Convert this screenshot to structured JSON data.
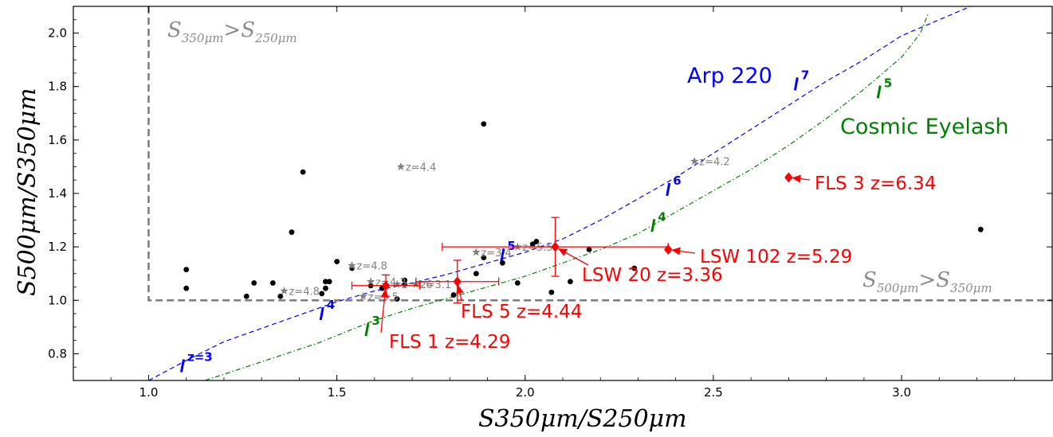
{
  "chart_data": {
    "type": "scatter",
    "xlabel": "S350μm/S250μm",
    "ylabel": "S500μm/S350μm",
    "xlim": [
      0.8,
      3.4
    ],
    "ylim": [
      0.7,
      2.1
    ],
    "xticks": [
      "1.0",
      "1.5",
      "2.0",
      "2.5",
      "3.0"
    ],
    "yticks": [
      "0.8",
      "1.0",
      "1.2",
      "1.4",
      "1.6",
      "1.8",
      "2.0"
    ],
    "grid": false,
    "regions": {
      "vertical_threshold_x": 1.0,
      "horizontal_threshold_y": 1.0,
      "upper_left_label": {
        "main": "S",
        "sub1": "350μm",
        "mid": ">S",
        "sub2": "250μm"
      },
      "lower_right_label": {
        "main": "S",
        "sub1": "500μm",
        "mid": ">S",
        "sub2": "350μm"
      },
      "color": "#808080"
    },
    "black_points": [
      {
        "x": 1.1,
        "y": 1.115
      },
      {
        "x": 1.1,
        "y": 1.045
      },
      {
        "x": 1.26,
        "y": 1.015
      },
      {
        "x": 1.28,
        "y": 1.065
      },
      {
        "x": 1.33,
        "y": 1.065
      },
      {
        "x": 1.35,
        "y": 1.015
      },
      {
        "x": 1.38,
        "y": 1.255
      },
      {
        "x": 1.41,
        "y": 1.48
      },
      {
        "x": 1.46,
        "y": 1.025
      },
      {
        "x": 1.47,
        "y": 1.07
      },
      {
        "x": 1.47,
        "y": 1.045
      },
      {
        "x": 1.48,
        "y": 1.07
      },
      {
        "x": 1.5,
        "y": 1.145
      },
      {
        "x": 1.54,
        "y": 1.12
      },
      {
        "x": 1.59,
        "y": 1.055
      },
      {
        "x": 1.62,
        "y": 1.045
      },
      {
        "x": 1.66,
        "y": 1.005
      },
      {
        "x": 1.68,
        "y": 1.075
      },
      {
        "x": 1.68,
        "y": 1.06
      },
      {
        "x": 1.81,
        "y": 1.02
      },
      {
        "x": 1.87,
        "y": 1.1
      },
      {
        "x": 1.89,
        "y": 1.16
      },
      {
        "x": 1.89,
        "y": 1.66
      },
      {
        "x": 1.94,
        "y": 1.14
      },
      {
        "x": 1.98,
        "y": 1.065
      },
      {
        "x": 2.02,
        "y": 1.21
      },
      {
        "x": 2.03,
        "y": 1.22
      },
      {
        "x": 2.07,
        "y": 1.03
      },
      {
        "x": 2.12,
        "y": 1.07
      },
      {
        "x": 2.17,
        "y": 1.19
      },
      {
        "x": 2.29,
        "y": 1.12
      },
      {
        "x": 3.21,
        "y": 1.265
      }
    ],
    "star_points": [
      {
        "x": 1.36,
        "y": 1.035,
        "label": "z=4.8"
      },
      {
        "x": 1.54,
        "y": 1.13,
        "label": "z=4.8"
      },
      {
        "x": 1.57,
        "y": 1.015,
        "label": "z=3.5"
      },
      {
        "x": 1.59,
        "y": 1.07,
        "label": "z=4.2"
      },
      {
        "x": 1.66,
        "y": 1.06,
        "label": "z=4.6"
      },
      {
        "x": 1.67,
        "y": 1.5,
        "label": "z=4.4"
      },
      {
        "x": 1.71,
        "y": 1.06,
        "label": "z=3.1"
      },
      {
        "x": 1.87,
        "y": 1.18,
        "label": "z=3.4"
      },
      {
        "x": 1.98,
        "y": 1.2,
        "label": "z=5.5"
      },
      {
        "x": 2.45,
        "y": 1.52,
        "label": "z=4.2"
      }
    ],
    "sources": [
      {
        "name": "FLS 1 z=4.29",
        "x": 1.63,
        "y": 1.055,
        "xerr": 0.09,
        "yerr": 0.04
      },
      {
        "name": "FLS 5 z=4.44",
        "x": 1.82,
        "y": 1.07,
        "xerr": 0.11,
        "yerr": 0.08
      },
      {
        "name": "LSW 20 z=3.36",
        "x": 2.08,
        "y": 1.2,
        "xerr": 0.3,
        "yerr": 0.11
      },
      {
        "name": "LSW 102 z=5.29",
        "x": 2.38,
        "y": 1.19
      },
      {
        "name": "FLS 3 z=6.34",
        "x": 2.7,
        "y": 1.46
      }
    ],
    "series": [
      {
        "name": "Arp 220",
        "color": "#0000ff",
        "style": "dashed",
        "x": [
          1.0,
          1.1,
          1.2,
          1.3,
          1.4,
          1.5,
          1.6,
          1.7,
          1.8,
          1.9,
          2.0,
          2.1,
          2.2,
          2.3,
          2.4,
          2.5,
          2.6,
          2.7,
          2.8,
          2.9,
          3.0,
          3.1,
          3.2
        ],
        "y": [
          0.7,
          0.775,
          0.845,
          0.895,
          0.945,
          0.995,
          1.035,
          1.065,
          1.1,
          1.14,
          1.18,
          1.23,
          1.3,
          1.38,
          1.46,
          1.55,
          1.64,
          1.73,
          1.82,
          1.9,
          1.99,
          2.05,
          2.11
        ],
        "redshift_marks": [
          {
            "x": 1.09,
            "y": 0.755,
            "label": "z=3"
          },
          {
            "x": 1.46,
            "y": 0.95,
            "label": "4"
          },
          {
            "x": 1.94,
            "y": 1.17,
            "label": "5"
          },
          {
            "x": 2.38,
            "y": 1.415,
            "label": "6"
          },
          {
            "x": 2.72,
            "y": 1.81,
            "label": "7"
          }
        ]
      },
      {
        "name": "Cosmic Eyelash",
        "color": "#008000",
        "style": "dashdot",
        "x": [
          1.15,
          1.3,
          1.45,
          1.6,
          1.7,
          1.8,
          1.9,
          2.0,
          2.1,
          2.2,
          2.3,
          2.4,
          2.5,
          2.6,
          2.7,
          2.8,
          2.9,
          3.0,
          3.05,
          3.07
        ],
        "y": [
          0.7,
          0.77,
          0.84,
          0.925,
          0.97,
          1.01,
          1.05,
          1.09,
          1.14,
          1.19,
          1.25,
          1.33,
          1.41,
          1.49,
          1.58,
          1.68,
          1.79,
          1.91,
          2.0,
          2.07
        ],
        "redshift_marks": [
          {
            "x": 1.58,
            "y": 0.89,
            "label": "3"
          },
          {
            "x": 2.34,
            "y": 1.28,
            "label": "4"
          },
          {
            "x": 2.94,
            "y": 1.78,
            "label": "5"
          }
        ]
      }
    ],
    "colors": {
      "points": "#000000",
      "stars": "#808080",
      "sources": "#ff0000"
    }
  }
}
